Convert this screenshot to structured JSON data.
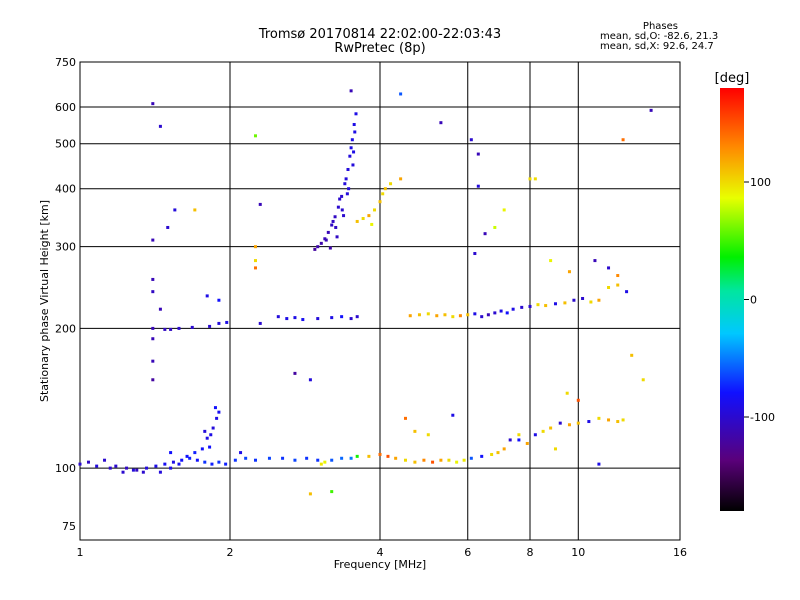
{
  "header": {
    "title": "Tromsø 20170814 22:02:00-22:03:43",
    "subtitle": "RwPretec (8p)"
  },
  "phases": {
    "heading": "Phases",
    "line_o": "mean, sd,O: -82.6, 21.3",
    "line_x": "mean, sd,X:  92.6, 24.7"
  },
  "colorbar": {
    "label": "[deg]",
    "ticks": [
      {
        "label": "100",
        "value": 100
      },
      {
        "label": "0",
        "value": 0
      },
      {
        "label": "-100",
        "value": -100
      }
    ],
    "range": [
      -180,
      180
    ]
  },
  "chart_data": {
    "type": "scatter",
    "xlabel": "Frequency [MHz]",
    "ylabel": "Stationary phase Virtual Height [km]",
    "x_scale": "log",
    "y_scale": "log",
    "xlim": [
      1,
      16
    ],
    "ylim": [
      70,
      750
    ],
    "xticks": [
      {
        "label": "1",
        "value": 1
      },
      {
        "label": "2",
        "value": 2
      },
      {
        "label": "4",
        "value": 4
      },
      {
        "label": "6",
        "value": 6
      },
      {
        "label": "8",
        "value": 8
      },
      {
        "label": "10",
        "value": 10
      },
      {
        "label": "16",
        "value": 16
      }
    ],
    "yticks": [
      {
        "label": "75",
        "value": 75
      },
      {
        "label": "100",
        "value": 100
      },
      {
        "label": "200",
        "value": 200
      },
      {
        "label": "300",
        "value": 300
      },
      {
        "label": "400",
        "value": 400
      },
      {
        "label": "500",
        "value": 500
      },
      {
        "label": "600",
        "value": 600
      },
      {
        "label": "750",
        "value": 750
      }
    ],
    "grid": true,
    "color_encodes": "phase [deg]",
    "points": [
      [
        1.0,
        102,
        -100
      ],
      [
        1.04,
        103,
        -105
      ],
      [
        1.08,
        101,
        -95
      ],
      [
        1.12,
        104,
        -100
      ],
      [
        1.18,
        101,
        -100
      ],
      [
        1.24,
        100,
        -105
      ],
      [
        1.3,
        99,
        -105
      ],
      [
        1.36,
        100,
        -95
      ],
      [
        1.42,
        101,
        -90
      ],
      [
        1.48,
        102,
        -85
      ],
      [
        1.54,
        103,
        -90
      ],
      [
        1.6,
        104,
        -80
      ],
      [
        1.66,
        105,
        -75
      ],
      [
        1.72,
        104,
        -80
      ],
      [
        1.78,
        103,
        -70
      ],
      [
        1.84,
        102,
        -75
      ],
      [
        1.9,
        103,
        -70
      ],
      [
        1.96,
        102,
        -75
      ],
      [
        2.05,
        104,
        -70
      ],
      [
        2.15,
        105,
        -65
      ],
      [
        2.25,
        104,
        -70
      ],
      [
        2.4,
        105,
        -65
      ],
      [
        2.55,
        105,
        -70
      ],
      [
        2.7,
        104,
        -65
      ],
      [
        2.85,
        105,
        -70
      ],
      [
        3.0,
        104,
        -70
      ],
      [
        3.05,
        102,
        95
      ],
      [
        3.1,
        103,
        90
      ],
      [
        3.2,
        104,
        -60
      ],
      [
        3.35,
        105,
        -55
      ],
      [
        3.5,
        105,
        -50
      ],
      [
        3.6,
        106,
        40
      ],
      [
        3.8,
        106,
        110
      ],
      [
        4.0,
        107,
        140
      ],
      [
        4.15,
        106,
        150
      ],
      [
        4.3,
        105,
        120
      ],
      [
        4.5,
        104,
        100
      ],
      [
        4.7,
        103,
        110
      ],
      [
        4.9,
        104,
        130
      ],
      [
        5.1,
        103,
        150
      ],
      [
        5.3,
        104,
        120
      ],
      [
        5.5,
        104,
        100
      ],
      [
        5.7,
        103,
        90
      ],
      [
        5.9,
        104,
        95
      ],
      [
        6.1,
        105,
        -60
      ],
      [
        6.4,
        106,
        -80
      ],
      [
        6.7,
        107,
        100
      ],
      [
        6.9,
        108,
        110
      ],
      [
        7.1,
        110,
        120
      ],
      [
        7.3,
        115,
        -100
      ],
      [
        7.6,
        118,
        100
      ],
      [
        7.9,
        113,
        120
      ],
      [
        8.2,
        118,
        -90
      ],
      [
        8.5,
        120,
        100
      ],
      [
        8.8,
        122,
        110
      ],
      [
        9.2,
        125,
        -100
      ],
      [
        9.6,
        124,
        120
      ],
      [
        10.0,
        125,
        110
      ],
      [
        10.5,
        126,
        -90
      ],
      [
        11.0,
        128,
        100
      ],
      [
        11.5,
        127,
        120
      ],
      [
        12.0,
        126,
        110
      ],
      [
        12.3,
        127,
        100
      ],
      [
        1.15,
        100,
        -100
      ],
      [
        1.22,
        98,
        -100
      ],
      [
        1.28,
        99,
        -95
      ],
      [
        1.34,
        98,
        -100
      ],
      [
        1.45,
        98,
        -95
      ],
      [
        1.52,
        100,
        -90
      ],
      [
        1.58,
        102,
        -85
      ],
      [
        1.64,
        106,
        -80
      ],
      [
        1.7,
        108,
        -75
      ],
      [
        1.76,
        110,
        -80
      ],
      [
        1.8,
        116,
        -90
      ],
      [
        1.85,
        122,
        -95
      ],
      [
        1.88,
        128,
        -90
      ],
      [
        1.9,
        132,
        -85
      ],
      [
        1.87,
        135,
        -80
      ],
      [
        1.83,
        118,
        -90
      ],
      [
        1.78,
        120,
        -95
      ],
      [
        1.82,
        111,
        -80
      ],
      [
        1.4,
        200,
        -110
      ],
      [
        1.48,
        199,
        -105
      ],
      [
        1.52,
        199,
        -105
      ],
      [
        1.58,
        200,
        -100
      ],
      [
        1.68,
        201,
        -100
      ],
      [
        1.82,
        202,
        -100
      ],
      [
        1.9,
        205,
        -95
      ],
      [
        1.97,
        206,
        -90
      ],
      [
        2.3,
        205,
        -100
      ],
      [
        2.5,
        212,
        -95
      ],
      [
        2.6,
        210,
        -90
      ],
      [
        2.7,
        211,
        -90
      ],
      [
        2.8,
        209,
        -85
      ],
      [
        3.0,
        210,
        -95
      ],
      [
        3.2,
        211,
        -90
      ],
      [
        3.35,
        212,
        -80
      ],
      [
        3.5,
        210,
        -100
      ],
      [
        3.6,
        212,
        -100
      ],
      [
        4.6,
        213,
        120
      ],
      [
        4.8,
        214,
        110
      ],
      [
        5.0,
        215,
        100
      ],
      [
        5.2,
        213,
        120
      ],
      [
        5.4,
        214,
        110
      ],
      [
        5.6,
        212,
        100
      ],
      [
        5.8,
        213,
        130
      ],
      [
        6.0,
        214,
        110
      ],
      [
        6.2,
        215,
        -90
      ],
      [
        6.4,
        212,
        -100
      ],
      [
        6.6,
        214,
        -110
      ],
      [
        6.8,
        216,
        -100
      ],
      [
        7.0,
        218,
        -90
      ],
      [
        7.2,
        216,
        -80
      ],
      [
        7.4,
        220,
        -90
      ],
      [
        7.7,
        222,
        -100
      ],
      [
        8.0,
        223,
        -100
      ],
      [
        8.3,
        225,
        100
      ],
      [
        8.6,
        224,
        110
      ],
      [
        9.0,
        226,
        -90
      ],
      [
        9.4,
        227,
        110
      ],
      [
        9.8,
        230,
        -100
      ],
      [
        10.2,
        232,
        -100
      ],
      [
        10.6,
        228,
        100
      ],
      [
        11.0,
        230,
        120
      ],
      [
        11.5,
        245,
        100
      ],
      [
        12.0,
        248,
        110
      ],
      [
        12.5,
        240,
        -90
      ],
      [
        2.96,
        296,
        -120
      ],
      [
        3.0,
        300,
        -115
      ],
      [
        3.05,
        305,
        -115
      ],
      [
        3.1,
        312,
        -110
      ],
      [
        3.15,
        322,
        -110
      ],
      [
        3.2,
        334,
        -105
      ],
      [
        3.25,
        348,
        -105
      ],
      [
        3.3,
        365,
        -100
      ],
      [
        3.35,
        385,
        -100
      ],
      [
        3.4,
        410,
        -95
      ],
      [
        3.45,
        440,
        -95
      ],
      [
        3.48,
        470,
        -95
      ],
      [
        3.52,
        510,
        -90
      ],
      [
        3.55,
        550,
        -90
      ],
      [
        3.58,
        580,
        -90
      ],
      [
        3.12,
        310,
        -110
      ],
      [
        3.22,
        340,
        -105
      ],
      [
        3.32,
        380,
        -100
      ],
      [
        3.42,
        420,
        -95
      ],
      [
        3.5,
        490,
        -90
      ],
      [
        3.28,
        315,
        -105
      ],
      [
        3.38,
        350,
        -100
      ],
      [
        3.46,
        400,
        -95
      ],
      [
        3.53,
        450,
        -95
      ],
      [
        3.56,
        530,
        -90
      ],
      [
        3.18,
        298,
        -115
      ],
      [
        3.26,
        330,
        -105
      ],
      [
        3.36,
        360,
        -100
      ],
      [
        3.44,
        390,
        -95
      ],
      [
        3.54,
        480,
        -90
      ],
      [
        3.6,
        340,
        110
      ],
      [
        3.7,
        345,
        100
      ],
      [
        3.8,
        350,
        120
      ],
      [
        3.9,
        360,
        100
      ],
      [
        4.0,
        375,
        110
      ],
      [
        4.05,
        390,
        100
      ],
      [
        4.1,
        400,
        110
      ],
      [
        3.85,
        335,
        90
      ],
      [
        4.2,
        410,
        100
      ],
      [
        4.4,
        420,
        120
      ],
      [
        6.2,
        290,
        -100
      ],
      [
        6.5,
        320,
        -110
      ],
      [
        6.8,
        330,
        80
      ],
      [
        7.1,
        360,
        90
      ],
      [
        8.0,
        420,
        100
      ],
      [
        8.8,
        280,
        90
      ],
      [
        9.6,
        265,
        120
      ],
      [
        10.8,
        280,
        -110
      ],
      [
        11.5,
        270,
        -100
      ],
      [
        12.0,
        260,
        130
      ],
      [
        1.4,
        310,
        -110
      ],
      [
        1.5,
        330,
        -100
      ],
      [
        1.55,
        360,
        -95
      ],
      [
        1.4,
        255,
        -110
      ],
      [
        1.4,
        240,
        -105
      ],
      [
        1.45,
        220,
        -110
      ],
      [
        1.8,
        235,
        -90
      ],
      [
        1.7,
        360,
        110
      ],
      [
        1.9,
        230,
        -80
      ],
      [
        2.3,
        370,
        -110
      ],
      [
        2.25,
        520,
        60
      ],
      [
        1.4,
        610,
        -110
      ],
      [
        1.45,
        545,
        -100
      ],
      [
        6.1,
        510,
        -100
      ],
      [
        6.3,
        475,
        -110
      ],
      [
        6.3,
        405,
        -95
      ],
      [
        8.2,
        420,
        100
      ],
      [
        12.3,
        510,
        140
      ],
      [
        14.0,
        590,
        -110
      ],
      [
        4.4,
        640,
        -60
      ],
      [
        5.3,
        555,
        -110
      ],
      [
        3.5,
        650,
        -110
      ],
      [
        2.25,
        280,
        100
      ],
      [
        2.25,
        270,
        140
      ],
      [
        2.25,
        300,
        120
      ],
      [
        1.4,
        190,
        -110
      ],
      [
        1.4,
        170,
        -110
      ],
      [
        1.4,
        155,
        -120
      ],
      [
        2.7,
        160,
        -120
      ],
      [
        2.9,
        155,
        -95
      ],
      [
        4.5,
        128,
        140
      ],
      [
        4.7,
        120,
        110
      ],
      [
        5.0,
        118,
        100
      ],
      [
        2.9,
        88,
        110
      ],
      [
        3.2,
        89,
        50
      ],
      [
        1.52,
        108,
        -80
      ],
      [
        2.1,
        108,
        -90
      ],
      [
        9.0,
        110,
        100
      ],
      [
        11.0,
        102,
        -90
      ],
      [
        9.5,
        145,
        100
      ],
      [
        7.6,
        115,
        -80
      ],
      [
        10.0,
        140,
        150
      ],
      [
        12.8,
        175,
        110
      ],
      [
        13.5,
        155,
        100
      ],
      [
        5.6,
        130,
        -90
      ]
    ]
  }
}
